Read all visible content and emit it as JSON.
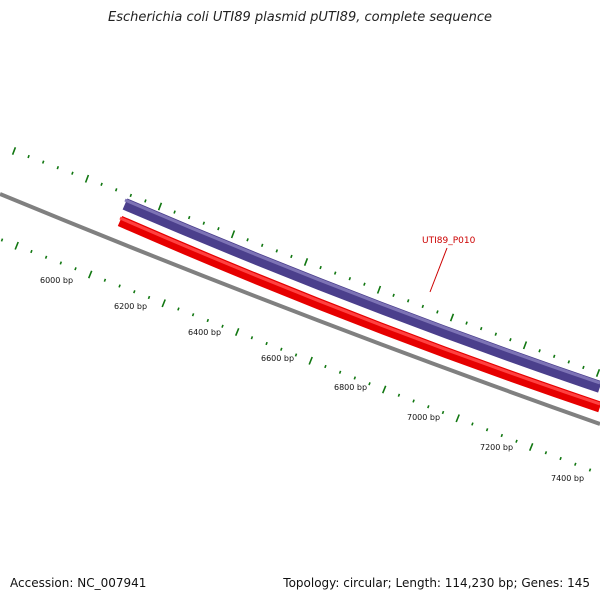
{
  "title": "Escherichia coli UTI89 plasmid pUTI89, complete sequence",
  "footer": {
    "accession": "Accession: NC_007941",
    "summary": "Topology: circular; Length: 114,230 bp; Genes: 145"
  },
  "scale": {
    "labels": [
      "6000 bp",
      "6200 bp",
      "6400 bp",
      "6600 bp",
      "6800 bp",
      "7000 bp",
      "7200 bp",
      "7400 bp"
    ]
  },
  "genes": [
    {
      "label": "UTI89_P010"
    }
  ],
  "colors": {
    "backbone": "#808080",
    "forward_gene": "#4b3f8c",
    "reverse_gene": "#ff0000",
    "ticks": "#117711",
    "gene_label": "#cc0000"
  }
}
